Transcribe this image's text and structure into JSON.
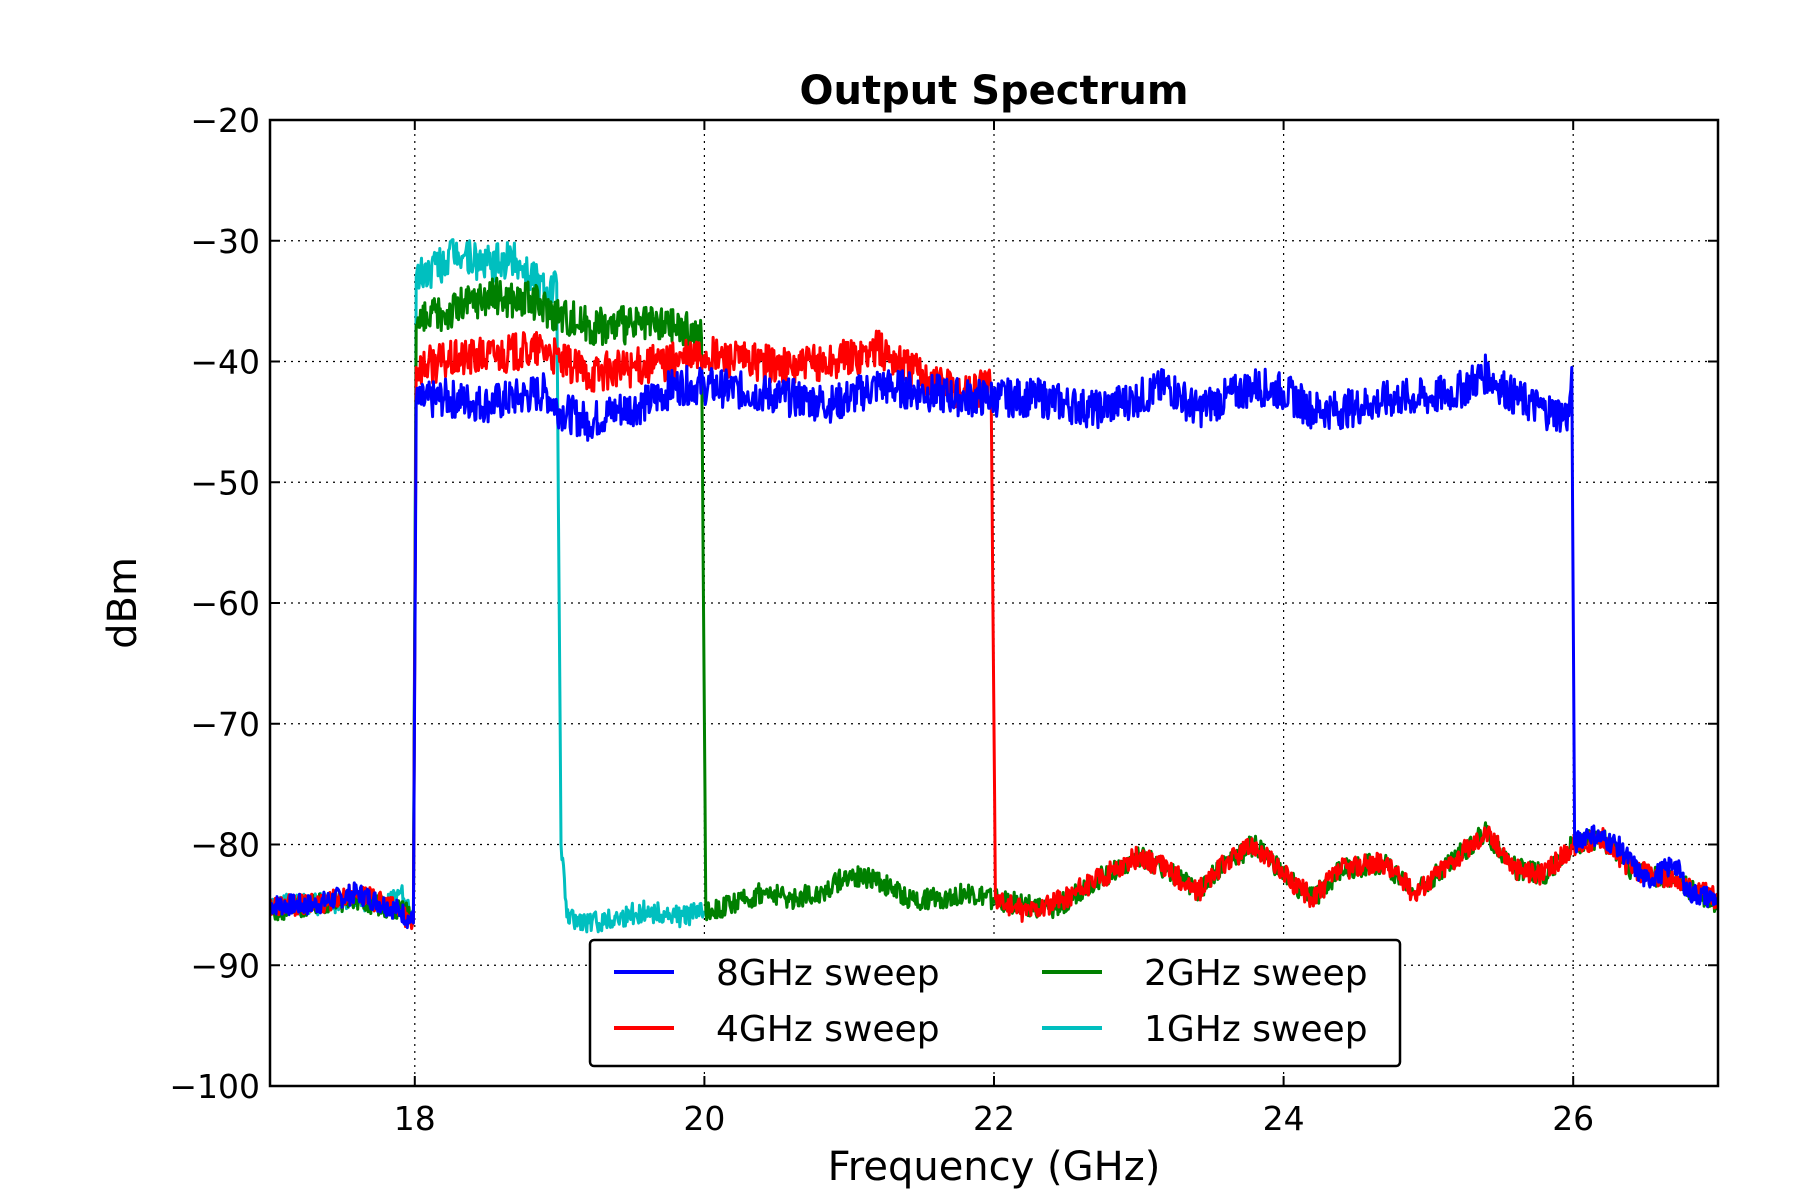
{
  "chart_data": {
    "type": "line",
    "title": "Output Spectrum",
    "xlabel": "Frequency (GHz)",
    "ylabel": "dBm",
    "xlim": [
      17,
      27
    ],
    "ylim": [
      -100,
      -20
    ],
    "x_ticks": [
      18,
      20,
      22,
      24,
      26
    ],
    "x_tick_labels": [
      "18",
      "20",
      "22",
      "24",
      "26"
    ],
    "y_ticks": [
      -20,
      -30,
      -40,
      -50,
      -60,
      -70,
      -80,
      -90,
      -100
    ],
    "y_tick_labels": [
      "−20",
      "−30",
      "−40",
      "−50",
      "−60",
      "−70",
      "−80",
      "−90",
      "−100"
    ],
    "grid": true,
    "legend_position": "lower-center",
    "series": [
      {
        "name": "8GHz sweep",
        "color": "#0000ff",
        "x": [
          17.0,
          17.3,
          17.6,
          17.9,
          17.99,
          18.01,
          18.2,
          18.5,
          18.9,
          19.0,
          19.2,
          19.4,
          19.6,
          19.8,
          20.0,
          20.3,
          20.6,
          20.9,
          21.2,
          21.5,
          21.8,
          22.0,
          22.3,
          22.5,
          22.7,
          23.0,
          23.2,
          23.4,
          23.6,
          23.8,
          24.0,
          24.2,
          24.4,
          24.6,
          24.8,
          25.0,
          25.2,
          25.4,
          25.6,
          25.8,
          25.97,
          25.99,
          26.01,
          26.1,
          26.3,
          26.5,
          26.65,
          26.7,
          26.8,
          27.0
        ],
        "y": [
          -85,
          -85,
          -84,
          -85.5,
          -86.5,
          -43.5,
          -43,
          -43.5,
          -42.5,
          -44,
          -45,
          -44,
          -43.5,
          -42,
          -42,
          -42.5,
          -43,
          -43.5,
          -42,
          -42.5,
          -43,
          -43,
          -43,
          -43.5,
          -44,
          -43,
          -42,
          -44,
          -43,
          -42,
          -42.5,
          -44,
          -44,
          -43.5,
          -43,
          -43,
          -42.5,
          -41,
          -43,
          -44,
          -44.5,
          -40.5,
          -80,
          -79,
          -80,
          -83,
          -82,
          -81.5,
          -84,
          -84.5
        ]
      },
      {
        "name": "4GHz sweep",
        "color": "#ff0000",
        "x": [
          17.0,
          17.3,
          17.6,
          17.9,
          17.99,
          18.01,
          18.2,
          18.5,
          18.9,
          19.0,
          19.2,
          19.5,
          19.8,
          20.0,
          20.3,
          20.6,
          20.9,
          21.2,
          21.5,
          21.8,
          21.98,
          22.01,
          22.2,
          22.4,
          22.7,
          23.0,
          23.2,
          23.4,
          23.6,
          23.8,
          24.0,
          24.2,
          24.4,
          24.7,
          24.9,
          25.1,
          25.4,
          25.6,
          25.8,
          26.0,
          26.2,
          26.4,
          26.7,
          27.0
        ],
        "y": [
          -85,
          -85,
          -84,
          -85.5,
          -86.5,
          -40.5,
          -40,
          -39.5,
          -39,
          -40,
          -41,
          -40.5,
          -40,
          -39.5,
          -40,
          -40.5,
          -40,
          -39,
          -41,
          -42.5,
          -42,
          -84.5,
          -85.5,
          -85,
          -83,
          -81,
          -82,
          -84,
          -81.5,
          -80,
          -82.5,
          -84.5,
          -82,
          -81.5,
          -84,
          -82,
          -79,
          -82,
          -82.5,
          -80,
          -79.5,
          -82,
          -83,
          -84.5
        ]
      },
      {
        "name": "2GHz sweep",
        "color": "#008000",
        "x": [
          17.0,
          17.3,
          17.6,
          17.9,
          17.99,
          18.01,
          18.2,
          18.5,
          18.8,
          19.0,
          19.2,
          19.5,
          19.8,
          19.98,
          20.01,
          20.2,
          20.4,
          20.6,
          20.8,
          21.0,
          21.2,
          21.4,
          21.6,
          21.8,
          22.0,
          22.2,
          22.4,
          22.7,
          23.0,
          23.2,
          23.4,
          23.6,
          23.8,
          24.0,
          24.2,
          24.4,
          24.7,
          24.9,
          25.1,
          25.4,
          25.6,
          25.8,
          26.0,
          26.2,
          26.4,
          26.7,
          27.0
        ],
        "y": [
          -85.5,
          -85,
          -84.5,
          -85.5,
          -86,
          -37,
          -36,
          -34.5,
          -35,
          -36,
          -37,
          -37,
          -37,
          -38,
          -85.5,
          -85,
          -84,
          -84.5,
          -84,
          -82.5,
          -83,
          -84.5,
          -84.5,
          -84,
          -84.5,
          -85,
          -85.5,
          -83,
          -81,
          -82,
          -84,
          -81.5,
          -80,
          -82.5,
          -84.5,
          -82,
          -81.5,
          -84,
          -82,
          -79,
          -82,
          -82.5,
          -80,
          -79.5,
          -82,
          -83,
          -85
        ]
      },
      {
        "name": "1GHz sweep",
        "color": "#00bfbf",
        "x": [
          17.0,
          17.3,
          17.6,
          17.8,
          17.9,
          17.99,
          18.01,
          18.1,
          18.3,
          18.5,
          18.7,
          18.9,
          18.98,
          19.01,
          19.05,
          19.2,
          19.4,
          19.6,
          19.8,
          20.0
        ],
        "y": [
          -85,
          -85,
          -84.5,
          -85,
          -84,
          -86,
          -33,
          -32.5,
          -31,
          -32,
          -31.5,
          -34,
          -33.5,
          -80,
          -86,
          -86.5,
          -86,
          -85.5,
          -86,
          -85.5
        ]
      }
    ]
  }
}
